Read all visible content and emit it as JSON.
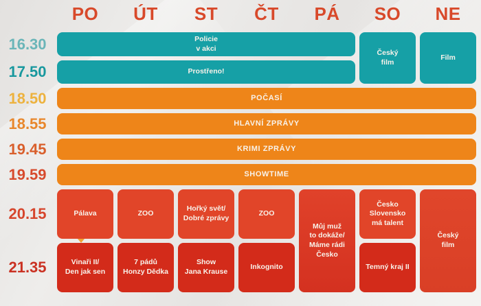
{
  "header": {
    "days": [
      "PO",
      "ÚT",
      "ST",
      "ČT",
      "PÁ",
      "SO",
      "NE"
    ]
  },
  "times": [
    {
      "label": "16.30",
      "color": "#6ab5b8"
    },
    {
      "label": "17.50",
      "color": "#18989e"
    },
    {
      "label": "18.50",
      "color": "#edb23e"
    },
    {
      "label": "18.55",
      "color": "#e8872c"
    },
    {
      "label": "19.45",
      "color": "#d95f2c"
    },
    {
      "label": "19.59",
      "color": "#d74a2d"
    },
    {
      "label": "20.15",
      "color": "#d6452c"
    },
    {
      "label": "21.35",
      "color": "#ca3122"
    }
  ],
  "palette": {
    "day_header": "#d8492a",
    "teal_block": "#16a0a6",
    "orange_block": "#ee8519",
    "red_light_block": "#e14529",
    "red_dark_block": "#d32b1a",
    "block_text": "#f8f2ea",
    "background": "#e9e7e5",
    "marker": "#f0a233"
  },
  "blocks": [
    {
      "name": "policie-v-akci",
      "label": "Policie\nv akci"
    },
    {
      "name": "cesky-film-so",
      "label": "Český\nfilm"
    },
    {
      "name": "film-ne",
      "label": "Film"
    },
    {
      "name": "prostreno",
      "label": "Prostřeno!"
    },
    {
      "name": "pocasi",
      "label": "POČASÍ"
    },
    {
      "name": "hlavni-zpravy",
      "label": "HLAVNÍ ZPRÁVY"
    },
    {
      "name": "krimi-zpravy",
      "label": "KRIMI ZPRÁVY"
    },
    {
      "name": "showtime",
      "label": "SHOWTIME"
    },
    {
      "name": "palava",
      "label": "Pálava"
    },
    {
      "name": "zoo-ut",
      "label": "ZOO"
    },
    {
      "name": "horky-svet-dobre-zpravy",
      "label": "Hořký svět/\nDobré zprávy"
    },
    {
      "name": "zoo-ct",
      "label": "ZOO"
    },
    {
      "name": "muj-muz-to-dokaze",
      "label": "Můj muž\nto dokáže/\nMáme rádi\nČesko"
    },
    {
      "name": "cesko-slovensko-ma-talent",
      "label": "Česko Slovensko\nmá talent"
    },
    {
      "name": "cesky-film-ne",
      "label": "Český\nfilm"
    },
    {
      "name": "vinari-den-jak-sen",
      "label": "Vinaři II/\nDen jak sen"
    },
    {
      "name": "sedm-padu-honzy-dedka",
      "label": "7 pádů\nHonzy Dědka"
    },
    {
      "name": "show-jana-krause",
      "label": "Show\nJana Krause"
    },
    {
      "name": "inkognito",
      "label": "Inkognito"
    },
    {
      "name": "temny-kraj",
      "label": "Temný kraj II"
    }
  ],
  "chart_data": {
    "type": "table",
    "columns": [
      "PO",
      "ÚT",
      "ST",
      "ČT",
      "PÁ",
      "SO",
      "NE"
    ],
    "row_labels": [
      "16.30",
      "17.50",
      "18.50",
      "18.55",
      "19.45",
      "19.59",
      "20.15",
      "21.35"
    ],
    "cells": [
      {
        "time": "16.30",
        "days": "PO–PÁ",
        "program": "Policie v akci"
      },
      {
        "time": "16.30–17.50",
        "days": "SO",
        "program": "Český film"
      },
      {
        "time": "16.30–17.50",
        "days": "NE",
        "program": "Film"
      },
      {
        "time": "17.50",
        "days": "PO–PÁ",
        "program": "Prostřeno!"
      },
      {
        "time": "18.50",
        "days": "PO–NE",
        "program": "POČASÍ"
      },
      {
        "time": "18.55",
        "days": "PO–NE",
        "program": "HLAVNÍ ZPRÁVY"
      },
      {
        "time": "19.45",
        "days": "PO–NE",
        "program": "KRIMI ZPRÁVY"
      },
      {
        "time": "19.59",
        "days": "PO–NE",
        "program": "SHOWTIME"
      },
      {
        "time": "20.15",
        "days": "PO",
        "program": "Pálava"
      },
      {
        "time": "20.15",
        "days": "ÚT",
        "program": "ZOO"
      },
      {
        "time": "20.15",
        "days": "ST",
        "program": "Hořký svět/Dobré zprávy"
      },
      {
        "time": "20.15",
        "days": "ČT",
        "program": "ZOO"
      },
      {
        "time": "20.15–21.35",
        "days": "PÁ",
        "program": "Můj muž to dokáže/Máme rádi Česko"
      },
      {
        "time": "20.15",
        "days": "SO",
        "program": "Česko Slovensko má talent"
      },
      {
        "time": "20.15–21.35",
        "days": "NE",
        "program": "Český film"
      },
      {
        "time": "21.35",
        "days": "PO",
        "program": "Vinaři II/Den jak sen"
      },
      {
        "time": "21.35",
        "days": "ÚT",
        "program": "7 pádů Honzy Dědka"
      },
      {
        "time": "21.35",
        "days": "ST",
        "program": "Show Jana Krause"
      },
      {
        "time": "21.35",
        "days": "ČT",
        "program": "Inkognito"
      },
      {
        "time": "21.35",
        "days": "SO",
        "program": "Temný kraj II"
      }
    ]
  }
}
